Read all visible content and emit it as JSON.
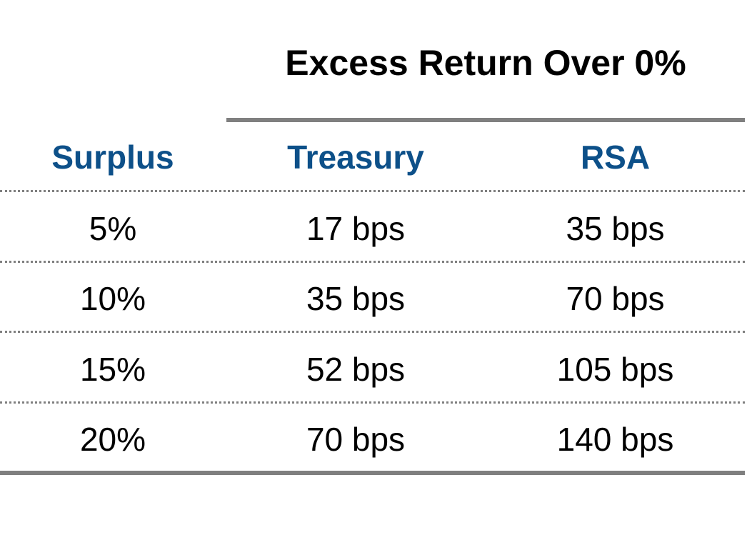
{
  "chart_data": {
    "type": "table",
    "title": "Excess Return Over 0%",
    "columns": [
      "Surplus",
      "Treasury",
      "RSA"
    ],
    "rows": [
      [
        "5%",
        "17 bps",
        "35 bps"
      ],
      [
        "10%",
        "35 bps",
        "70 bps"
      ],
      [
        "15%",
        "52 bps",
        "105 bps"
      ],
      [
        "20%",
        "70 bps",
        "140 bps"
      ]
    ],
    "header_color": "#0d5089",
    "rule_color": "#7f7f7f"
  }
}
